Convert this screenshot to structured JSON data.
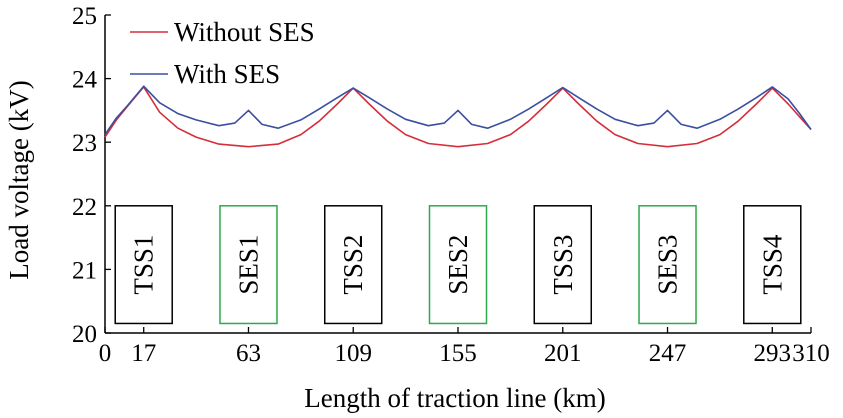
{
  "chart_data": {
    "type": "line",
    "title": "",
    "xlabel": "Length of traction line (km)",
    "ylabel": "Load voltage (kV)",
    "xlim": [
      0,
      310
    ],
    "ylim": [
      20,
      25
    ],
    "x_ticks": [
      0,
      17,
      63,
      109,
      155,
      201,
      247,
      293,
      310
    ],
    "y_ticks": [
      20,
      21,
      22,
      23,
      24,
      25
    ],
    "grid": false,
    "legend_placement": "top-left",
    "series": [
      {
        "name": "Without SES",
        "color": "#d62d3a",
        "x": [
          0,
          5,
          10,
          17,
          24,
          32,
          40,
          50,
          63,
          76,
          86,
          94,
          102,
          109,
          116,
          124,
          132,
          142,
          155,
          168,
          178,
          186,
          194,
          201,
          208,
          216,
          224,
          234,
          247,
          260,
          270,
          278,
          286,
          293,
          300,
          305,
          310
        ],
        "y": [
          23.08,
          23.35,
          23.57,
          23.87,
          23.47,
          23.22,
          23.08,
          22.97,
          22.93,
          22.97,
          23.12,
          23.33,
          23.6,
          23.85,
          23.6,
          23.33,
          23.12,
          22.98,
          22.93,
          22.98,
          23.12,
          23.33,
          23.6,
          23.85,
          23.6,
          23.33,
          23.12,
          22.98,
          22.93,
          22.98,
          23.12,
          23.33,
          23.6,
          23.85,
          23.6,
          23.4,
          23.2
        ]
      },
      {
        "name": "With SES",
        "color": "#3a4fa0",
        "x": [
          0,
          5,
          10,
          17,
          24,
          32,
          40,
          50,
          57,
          63,
          69,
          76,
          86,
          94,
          102,
          109,
          116,
          124,
          132,
          142,
          149,
          155,
          161,
          168,
          178,
          186,
          194,
          201,
          208,
          216,
          224,
          234,
          241,
          247,
          253,
          260,
          270,
          278,
          286,
          293,
          300,
          305,
          310
        ],
        "y": [
          23.12,
          23.38,
          23.58,
          23.88,
          23.62,
          23.45,
          23.35,
          23.26,
          23.3,
          23.5,
          23.28,
          23.22,
          23.35,
          23.52,
          23.7,
          23.85,
          23.7,
          23.52,
          23.36,
          23.26,
          23.3,
          23.5,
          23.28,
          23.22,
          23.36,
          23.52,
          23.7,
          23.86,
          23.7,
          23.52,
          23.36,
          23.26,
          23.3,
          23.5,
          23.28,
          23.22,
          23.36,
          23.52,
          23.7,
          23.87,
          23.68,
          23.45,
          23.2
        ]
      }
    ],
    "stations": [
      {
        "label": "TSS1",
        "km": 17,
        "color": "#000000"
      },
      {
        "label": "SES1",
        "km": 63,
        "color": "#2ea84a"
      },
      {
        "label": "TSS2",
        "km": 109,
        "color": "#000000"
      },
      {
        "label": "SES2",
        "km": 155,
        "color": "#2ea84a"
      },
      {
        "label": "TSS3",
        "km": 201,
        "color": "#000000"
      },
      {
        "label": "SES3",
        "km": 247,
        "color": "#2ea84a"
      },
      {
        "label": "TSS4",
        "km": 293,
        "color": "#000000"
      }
    ]
  }
}
